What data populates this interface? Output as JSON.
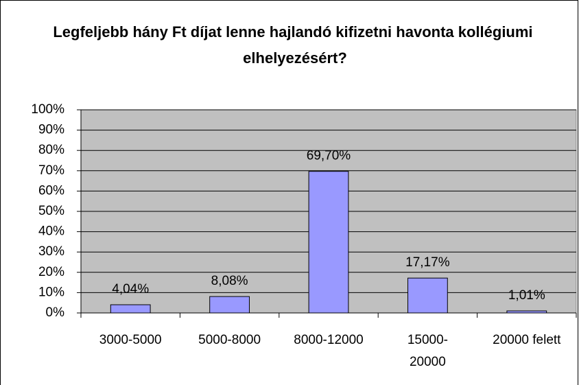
{
  "chart_data": {
    "type": "bar",
    "title": "Legfeljebb hány Ft díjat lenne hajlandó kifizetni havonta kollégiumi elhelyezésért?",
    "categories": [
      "3000-5000",
      "5000-8000",
      "8000-12000",
      "15000-20000",
      "20000 felett"
    ],
    "values": [
      4.04,
      8.08,
      69.7,
      17.17,
      1.01
    ],
    "value_labels": [
      "4,04%",
      "8,08%",
      "69,70%",
      "17,17%",
      "1,01%"
    ],
    "color": "#9999ff",
    "ylim": [
      0,
      100
    ],
    "yticks": [
      {
        "value": 0,
        "label": "0%"
      },
      {
        "value": 10,
        "label": "10%"
      },
      {
        "value": 20,
        "label": "20%"
      },
      {
        "value": 30,
        "label": "30%"
      },
      {
        "value": 40,
        "label": "40%"
      },
      {
        "value": 50,
        "label": "50%"
      },
      {
        "value": 60,
        "label": "60%"
      },
      {
        "value": 70,
        "label": "70%"
      },
      {
        "value": 80,
        "label": "80%"
      },
      {
        "value": 90,
        "label": "90%"
      },
      {
        "value": 100,
        "label": "100%"
      }
    ],
    "grid": true
  }
}
